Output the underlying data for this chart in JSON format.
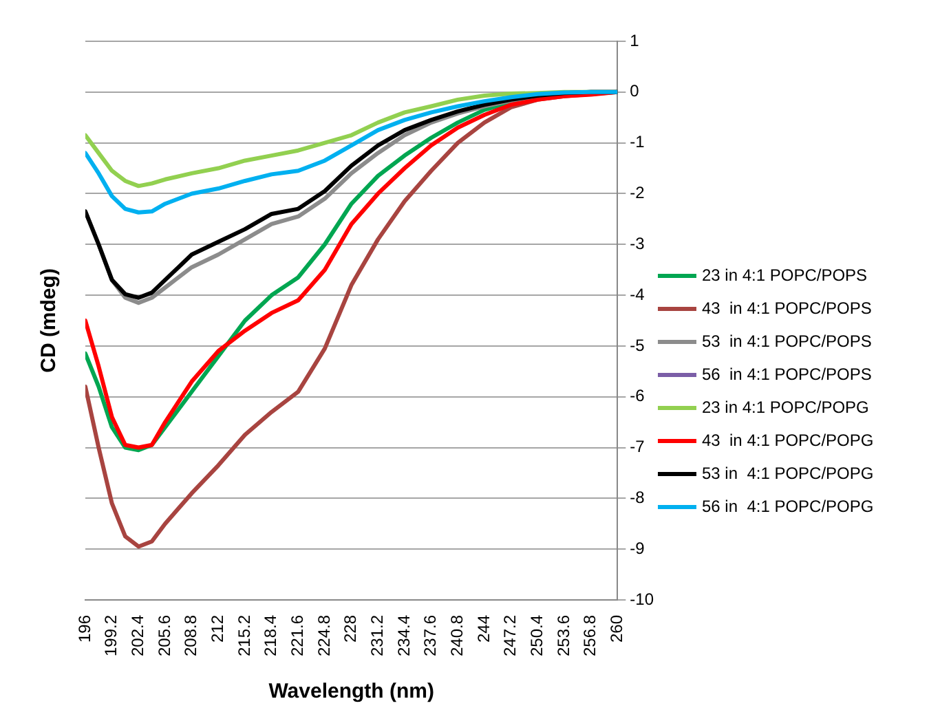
{
  "chart_data": {
    "type": "line",
    "xlabel": "Wavelength (nm)",
    "ylabel": "CD (mdeg)",
    "x": [
      196,
      197.6,
      199.2,
      200.8,
      202.4,
      204,
      205.6,
      208.8,
      212,
      215.2,
      218.4,
      221.6,
      224.8,
      228,
      231.2,
      234.4,
      237.6,
      240.8,
      244,
      247.2,
      250.4,
      253.6,
      256.8,
      260
    ],
    "xlim": [
      196,
      260
    ],
    "xticks": [
      196,
      199.2,
      202.4,
      205.6,
      208.8,
      212,
      215.2,
      218.4,
      221.6,
      224.8,
      228,
      231.2,
      234.4,
      237.6,
      240.8,
      244,
      247.2,
      250.4,
      253.6,
      256.8,
      260
    ],
    "ylim": [
      -10,
      1
    ],
    "yticks": [
      -10,
      -9,
      -8,
      -7,
      -6,
      -5,
      -4,
      -3,
      -2,
      -1,
      0,
      1
    ],
    "grid": "y",
    "legend": "right",
    "marker": "none",
    "line_style": "solid",
    "series": [
      {
        "name": "23 in 4:1 POPC/POPS",
        "color": "#00a651",
        "values": [
          -5.15,
          -5.8,
          -6.6,
          -7.0,
          -7.05,
          -6.95,
          -6.6,
          -5.9,
          -5.2,
          -4.5,
          -4.0,
          -3.65,
          -3.0,
          -2.2,
          -1.65,
          -1.25,
          -0.9,
          -0.6,
          -0.35,
          -0.2,
          -0.1,
          -0.05,
          -0.02,
          0
        ]
      },
      {
        "name": "43  in 4:1 POPC/POPS",
        "color": "#a84440",
        "values": [
          -5.8,
          -7.0,
          -8.1,
          -8.75,
          -8.95,
          -8.85,
          -8.5,
          -7.9,
          -7.35,
          -6.75,
          -6.3,
          -5.9,
          -5.05,
          -3.8,
          -2.9,
          -2.15,
          -1.55,
          -1.0,
          -0.6,
          -0.3,
          -0.15,
          -0.08,
          -0.04,
          0
        ]
      },
      {
        "name": "53  in 4:1 POPC/POPS",
        "color": "#8c8c8c",
        "values": [
          -2.35,
          -3.0,
          -3.7,
          -4.05,
          -4.15,
          -4.05,
          -3.85,
          -3.45,
          -3.2,
          -2.9,
          -2.6,
          -2.45,
          -2.1,
          -1.6,
          -1.2,
          -0.85,
          -0.6,
          -0.42,
          -0.28,
          -0.17,
          -0.08,
          -0.03,
          0,
          0
        ]
      },
      {
        "name": "56  in 4:1 POPC/POPS",
        "color": "#7b5ea7",
        "values": [
          null,
          null,
          null,
          null,
          null,
          null,
          null,
          null,
          null,
          null,
          null,
          null,
          null,
          null,
          null,
          null,
          null,
          null,
          null,
          null,
          null,
          null,
          null,
          null
        ]
      },
      {
        "name": "23 in 4:1 POPC/POPG",
        "color": "#92d050",
        "values": [
          -0.85,
          -1.2,
          -1.55,
          -1.75,
          -1.85,
          -1.8,
          -1.72,
          -1.6,
          -1.5,
          -1.35,
          -1.25,
          -1.15,
          -1.0,
          -0.85,
          -0.6,
          -0.4,
          -0.28,
          -0.15,
          -0.07,
          -0.03,
          -0.02,
          0,
          0,
          0
        ]
      },
      {
        "name": "43  in 4:1 POPC/POPG",
        "color": "#ff0000",
        "values": [
          -4.5,
          -5.4,
          -6.4,
          -6.95,
          -7.0,
          -6.95,
          -6.5,
          -5.7,
          -5.1,
          -4.7,
          -4.35,
          -4.1,
          -3.5,
          -2.6,
          -2.0,
          -1.5,
          -1.05,
          -0.7,
          -0.45,
          -0.25,
          -0.15,
          -0.08,
          -0.05,
          0
        ]
      },
      {
        "name": "53 in  4:1 POPC/POPG",
        "color": "#000000",
        "values": [
          -2.35,
          -3.0,
          -3.7,
          -3.98,
          -4.05,
          -3.95,
          -3.7,
          -3.2,
          -2.95,
          -2.7,
          -2.4,
          -2.3,
          -1.95,
          -1.45,
          -1.05,
          -0.75,
          -0.55,
          -0.38,
          -0.25,
          -0.15,
          -0.07,
          -0.02,
          0,
          0
        ]
      },
      {
        "name": "56 in  4:1 POPC/POPG",
        "color": "#00b0f0",
        "values": [
          -1.2,
          -1.6,
          -2.05,
          -2.3,
          -2.37,
          -2.35,
          -2.2,
          -2.0,
          -1.9,
          -1.75,
          -1.62,
          -1.55,
          -1.35,
          -1.05,
          -0.75,
          -0.55,
          -0.4,
          -0.28,
          -0.18,
          -0.1,
          -0.04,
          -0.01,
          0,
          0
        ]
      }
    ]
  }
}
